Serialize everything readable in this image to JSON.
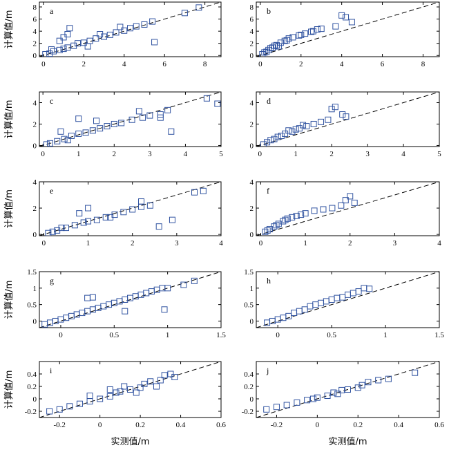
{
  "figure": {
    "ylabel": "计算值/m",
    "xlabel": "实测值/m",
    "marker_color": "#2f52a0",
    "ref_line_color": "#000000"
  },
  "chart_data": [
    {
      "type": "scatter",
      "label": "a",
      "xlim": [
        -0.2,
        8.8
      ],
      "ylim": [
        -0.2,
        8.8
      ],
      "xticks": [
        0,
        2,
        4,
        6,
        8
      ],
      "yticks": [
        0,
        2,
        4,
        6,
        8
      ],
      "points": [
        [
          0.1,
          0.2
        ],
        [
          0.3,
          0.3
        ],
        [
          0.5,
          0.7
        ],
        [
          0.8,
          0.9
        ],
        [
          1.0,
          1.1
        ],
        [
          1.2,
          1.3
        ],
        [
          1.5,
          1.6
        ],
        [
          1.7,
          2.0
        ],
        [
          2.0,
          2.1
        ],
        [
          2.3,
          2.4
        ],
        [
          2.6,
          2.8
        ],
        [
          3.0,
          3.1
        ],
        [
          3.3,
          3.4
        ],
        [
          3.6,
          3.8
        ],
        [
          4.0,
          4.1
        ],
        [
          4.3,
          4.5
        ],
        [
          4.6,
          4.8
        ],
        [
          5.0,
          5.1
        ],
        [
          5.4,
          5.6
        ],
        [
          1.3,
          4.5
        ],
        [
          1.2,
          3.5
        ],
        [
          1.0,
          3.0
        ],
        [
          0.8,
          2.4
        ],
        [
          5.5,
          2.2
        ],
        [
          2.2,
          1.5
        ],
        [
          7.0,
          7.0
        ],
        [
          7.7,
          7.9
        ],
        [
          3.8,
          4.7
        ],
        [
          2.8,
          3.5
        ],
        [
          0.4,
          1.0
        ]
      ]
    },
    {
      "type": "scatter",
      "label": "b",
      "xlim": [
        -0.2,
        8.8
      ],
      "ylim": [
        -0.2,
        8.8
      ],
      "xticks": [
        0,
        2,
        4,
        6,
        8
      ],
      "yticks": [
        0,
        2,
        4,
        6,
        8
      ],
      "points": [
        [
          0.1,
          0.2
        ],
        [
          0.2,
          0.5
        ],
        [
          0.4,
          0.9
        ],
        [
          0.6,
          1.3
        ],
        [
          0.8,
          1.7
        ],
        [
          1.0,
          2.1
        ],
        [
          1.2,
          2.4
        ],
        [
          1.4,
          2.8
        ],
        [
          1.6,
          3.0
        ],
        [
          1.9,
          3.3
        ],
        [
          2.2,
          3.6
        ],
        [
          2.5,
          3.9
        ],
        [
          2.8,
          4.3
        ],
        [
          3.0,
          4.4
        ],
        [
          3.7,
          4.8
        ],
        [
          4.0,
          6.6
        ],
        [
          4.2,
          6.3
        ],
        [
          4.5,
          5.5
        ],
        [
          0.3,
          0.6
        ],
        [
          0.5,
          1.2
        ],
        [
          0.9,
          1.5
        ],
        [
          1.3,
          2.5
        ],
        [
          2.0,
          3.4
        ],
        [
          2.6,
          4.0
        ],
        [
          0.7,
          1.6
        ]
      ]
    },
    {
      "type": "scatter",
      "label": "c",
      "xlim": [
        -0.1,
        5
      ],
      "ylim": [
        -0.1,
        5
      ],
      "xticks": [
        0,
        1,
        2,
        3,
        4,
        5
      ],
      "yticks": [
        0,
        2,
        4
      ],
      "points": [
        [
          0.1,
          0.1
        ],
        [
          0.2,
          0.2
        ],
        [
          0.4,
          0.4
        ],
        [
          0.6,
          0.6
        ],
        [
          0.8,
          0.9
        ],
        [
          1.0,
          1.1
        ],
        [
          1.2,
          1.2
        ],
        [
          1.4,
          1.4
        ],
        [
          1.6,
          1.6
        ],
        [
          1.8,
          1.8
        ],
        [
          2.0,
          2.0
        ],
        [
          2.2,
          2.1
        ],
        [
          2.5,
          2.4
        ],
        [
          2.8,
          2.6
        ],
        [
          3.0,
          2.8
        ],
        [
          3.3,
          2.9
        ],
        [
          3.5,
          3.3
        ],
        [
          1.0,
          2.5
        ],
        [
          0.5,
          1.3
        ],
        [
          1.5,
          2.3
        ],
        [
          4.6,
          4.4
        ],
        [
          4.9,
          3.9
        ],
        [
          3.6,
          1.3
        ],
        [
          3.3,
          2.6
        ],
        [
          2.7,
          3.2
        ],
        [
          0.7,
          0.5
        ]
      ]
    },
    {
      "type": "scatter",
      "label": "d",
      "xlim": [
        -0.1,
        5
      ],
      "ylim": [
        -0.1,
        5
      ],
      "xticks": [
        0,
        1,
        2,
        3,
        4,
        5
      ],
      "yticks": [
        0,
        2,
        4
      ],
      "points": [
        [
          0.1,
          0.1
        ],
        [
          0.2,
          0.3
        ],
        [
          0.3,
          0.5
        ],
        [
          0.5,
          0.8
        ],
        [
          0.7,
          1.1
        ],
        [
          0.9,
          1.3
        ],
        [
          1.1,
          1.6
        ],
        [
          1.3,
          1.8
        ],
        [
          1.5,
          2.0
        ],
        [
          1.7,
          2.2
        ],
        [
          1.9,
          2.4
        ],
        [
          2.0,
          3.4
        ],
        [
          2.1,
          3.6
        ],
        [
          2.3,
          2.9
        ],
        [
          2.4,
          2.7
        ],
        [
          0.4,
          0.6
        ],
        [
          0.6,
          0.9
        ],
        [
          0.8,
          1.4
        ],
        [
          1.0,
          1.5
        ],
        [
          1.2,
          1.9
        ]
      ]
    },
    {
      "type": "scatter",
      "label": "e",
      "xlim": [
        -0.1,
        4
      ],
      "ylim": [
        -0.1,
        4
      ],
      "xticks": [
        0,
        1,
        2,
        3,
        4
      ],
      "yticks": [
        0,
        2,
        4
      ],
      "points": [
        [
          0.1,
          0.1
        ],
        [
          0.2,
          0.2
        ],
        [
          0.3,
          0.3
        ],
        [
          0.5,
          0.5
        ],
        [
          0.7,
          0.7
        ],
        [
          0.9,
          0.9
        ],
        [
          1.0,
          1.0
        ],
        [
          1.2,
          1.1
        ],
        [
          1.4,
          1.3
        ],
        [
          1.6,
          1.5
        ],
        [
          1.8,
          1.7
        ],
        [
          2.0,
          1.9
        ],
        [
          2.2,
          2.1
        ],
        [
          2.4,
          2.2
        ],
        [
          0.8,
          1.6
        ],
        [
          1.0,
          2.0
        ],
        [
          2.2,
          2.5
        ],
        [
          3.4,
          3.2
        ],
        [
          3.6,
          3.3
        ],
        [
          2.6,
          0.6
        ],
        [
          2.9,
          1.1
        ],
        [
          0.4,
          0.5
        ],
        [
          1.5,
          1.3
        ]
      ]
    },
    {
      "type": "scatter",
      "label": "f",
      "xlim": [
        -0.1,
        4
      ],
      "ylim": [
        -0.1,
        4
      ],
      "xticks": [
        0,
        1,
        2,
        3,
        4
      ],
      "yticks": [
        0,
        2,
        4
      ],
      "points": [
        [
          0.1,
          0.2
        ],
        [
          0.2,
          0.4
        ],
        [
          0.3,
          0.6
        ],
        [
          0.4,
          0.8
        ],
        [
          0.5,
          1.0
        ],
        [
          0.6,
          1.2
        ],
        [
          0.7,
          1.3
        ],
        [
          0.8,
          1.4
        ],
        [
          0.9,
          1.5
        ],
        [
          1.0,
          1.6
        ],
        [
          1.2,
          1.8
        ],
        [
          1.4,
          1.9
        ],
        [
          1.6,
          2.0
        ],
        [
          1.8,
          2.2
        ],
        [
          1.9,
          2.6
        ],
        [
          2.0,
          2.9
        ],
        [
          2.1,
          2.4
        ],
        [
          0.15,
          0.3
        ],
        [
          0.35,
          0.7
        ],
        [
          0.55,
          1.1
        ]
      ]
    },
    {
      "type": "scatter",
      "label": "g",
      "xlim": [
        -0.2,
        1.5
      ],
      "ylim": [
        -0.2,
        1.5
      ],
      "xticks": [
        0,
        0.5,
        1,
        1.5
      ],
      "yticks": [
        0,
        0.5,
        1,
        1.5
      ],
      "points": [
        [
          -0.15,
          -0.1
        ],
        [
          -0.1,
          -0.05
        ],
        [
          -0.05,
          0.0
        ],
        [
          0.0,
          0.05
        ],
        [
          0.05,
          0.1
        ],
        [
          0.1,
          0.15
        ],
        [
          0.15,
          0.2
        ],
        [
          0.2,
          0.25
        ],
        [
          0.25,
          0.3
        ],
        [
          0.3,
          0.35
        ],
        [
          0.35,
          0.4
        ],
        [
          0.4,
          0.45
        ],
        [
          0.45,
          0.5
        ],
        [
          0.5,
          0.55
        ],
        [
          0.55,
          0.6
        ],
        [
          0.6,
          0.65
        ],
        [
          0.65,
          0.7
        ],
        [
          0.7,
          0.75
        ],
        [
          0.75,
          0.8
        ],
        [
          0.8,
          0.85
        ],
        [
          0.85,
          0.9
        ],
        [
          0.9,
          0.95
        ],
        [
          0.95,
          1.0
        ],
        [
          1.0,
          1.0
        ],
        [
          1.15,
          1.1
        ],
        [
          1.25,
          1.22
        ],
        [
          0.25,
          0.7
        ],
        [
          0.3,
          0.72
        ],
        [
          0.97,
          0.35
        ],
        [
          0.6,
          0.3
        ]
      ]
    },
    {
      "type": "scatter",
      "label": "h",
      "xlim": [
        -0.2,
        1.5
      ],
      "ylim": [
        -0.2,
        1.5
      ],
      "xticks": [
        0,
        0.5,
        1,
        1.5
      ],
      "yticks": [
        0,
        0.5,
        1,
        1.5
      ],
      "points": [
        [
          -0.1,
          -0.05
        ],
        [
          -0.05,
          0.0
        ],
        [
          0.0,
          0.05
        ],
        [
          0.05,
          0.1
        ],
        [
          0.1,
          0.15
        ],
        [
          0.15,
          0.25
        ],
        [
          0.2,
          0.3
        ],
        [
          0.25,
          0.35
        ],
        [
          0.3,
          0.45
        ],
        [
          0.35,
          0.5
        ],
        [
          0.4,
          0.55
        ],
        [
          0.45,
          0.6
        ],
        [
          0.5,
          0.65
        ],
        [
          0.55,
          0.7
        ],
        [
          0.6,
          0.72
        ],
        [
          0.7,
          0.85
        ],
        [
          0.75,
          0.9
        ],
        [
          0.8,
          1.0
        ],
        [
          0.85,
          0.98
        ],
        [
          0.65,
          0.8
        ]
      ]
    },
    {
      "type": "scatter",
      "label": "i",
      "xlim": [
        -0.3,
        0.6
      ],
      "ylim": [
        -0.3,
        0.6
      ],
      "xticks": [
        -0.2,
        0,
        0.2,
        0.4,
        0.6
      ],
      "yticks": [
        -0.2,
        0,
        0.2,
        0.4
      ],
      "points": [
        [
          -0.25,
          -0.2
        ],
        [
          -0.2,
          -0.17
        ],
        [
          -0.15,
          -0.12
        ],
        [
          -0.1,
          -0.08
        ],
        [
          -0.05,
          -0.04
        ],
        [
          0.0,
          0.0
        ],
        [
          0.05,
          0.04
        ],
        [
          0.08,
          0.1
        ],
        [
          0.1,
          0.12
        ],
        [
          0.15,
          0.15
        ],
        [
          0.2,
          0.18
        ],
        [
          0.22,
          0.24
        ],
        [
          0.25,
          0.28
        ],
        [
          0.3,
          0.3
        ],
        [
          0.32,
          0.38
        ],
        [
          0.35,
          0.4
        ],
        [
          0.37,
          0.35
        ],
        [
          0.28,
          0.2
        ],
        [
          0.18,
          0.1
        ],
        [
          0.05,
          0.15
        ],
        [
          -0.05,
          0.05
        ],
        [
          0.12,
          0.2
        ]
      ]
    },
    {
      "type": "scatter",
      "label": "j",
      "xlim": [
        -0.3,
        0.6
      ],
      "ylim": [
        -0.3,
        0.6
      ],
      "xticks": [
        -0.2,
        0,
        0.2,
        0.4,
        0.6
      ],
      "yticks": [
        -0.2,
        0,
        0.2,
        0.4
      ],
      "points": [
        [
          -0.25,
          -0.17
        ],
        [
          -0.2,
          -0.13
        ],
        [
          -0.15,
          -0.1
        ],
        [
          -0.1,
          -0.06
        ],
        [
          -0.05,
          -0.02
        ],
        [
          0.0,
          0.02
        ],
        [
          0.05,
          0.05
        ],
        [
          0.08,
          0.1
        ],
        [
          0.1,
          0.08
        ],
        [
          0.15,
          0.15
        ],
        [
          0.2,
          0.18
        ],
        [
          0.22,
          0.22
        ],
        [
          0.25,
          0.27
        ],
        [
          0.3,
          0.3
        ],
        [
          0.35,
          0.32
        ],
        [
          0.48,
          0.42
        ],
        [
          0.12,
          0.14
        ],
        [
          -0.02,
          0.0
        ]
      ]
    }
  ]
}
